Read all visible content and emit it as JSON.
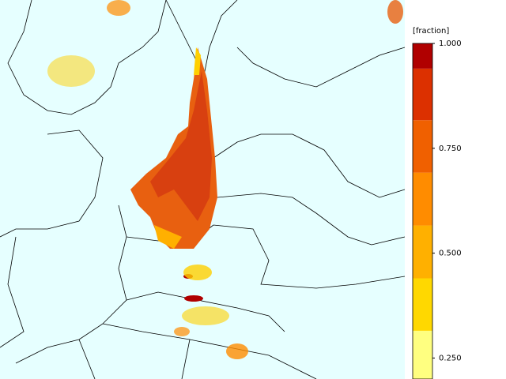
{
  "colorbar": {
    "title": "[fraction]",
    "clim": [
      0.2,
      1.0
    ],
    "ticks": [
      {
        "value": 1.0,
        "label": "1.000"
      },
      {
        "value": 0.75,
        "label": "0.750"
      },
      {
        "value": 0.5,
        "label": "0.500"
      },
      {
        "value": 0.25,
        "label": "0.250"
      }
    ],
    "levels": [
      0.2,
      0.315,
      0.44,
      0.566,
      0.692,
      0.817,
      0.94,
      1.0
    ],
    "colors": [
      "#ffff80",
      "#ffd800",
      "#ffb000",
      "#ff8c00",
      "#f06000",
      "#dc3000",
      "#b00000"
    ]
  }
}
